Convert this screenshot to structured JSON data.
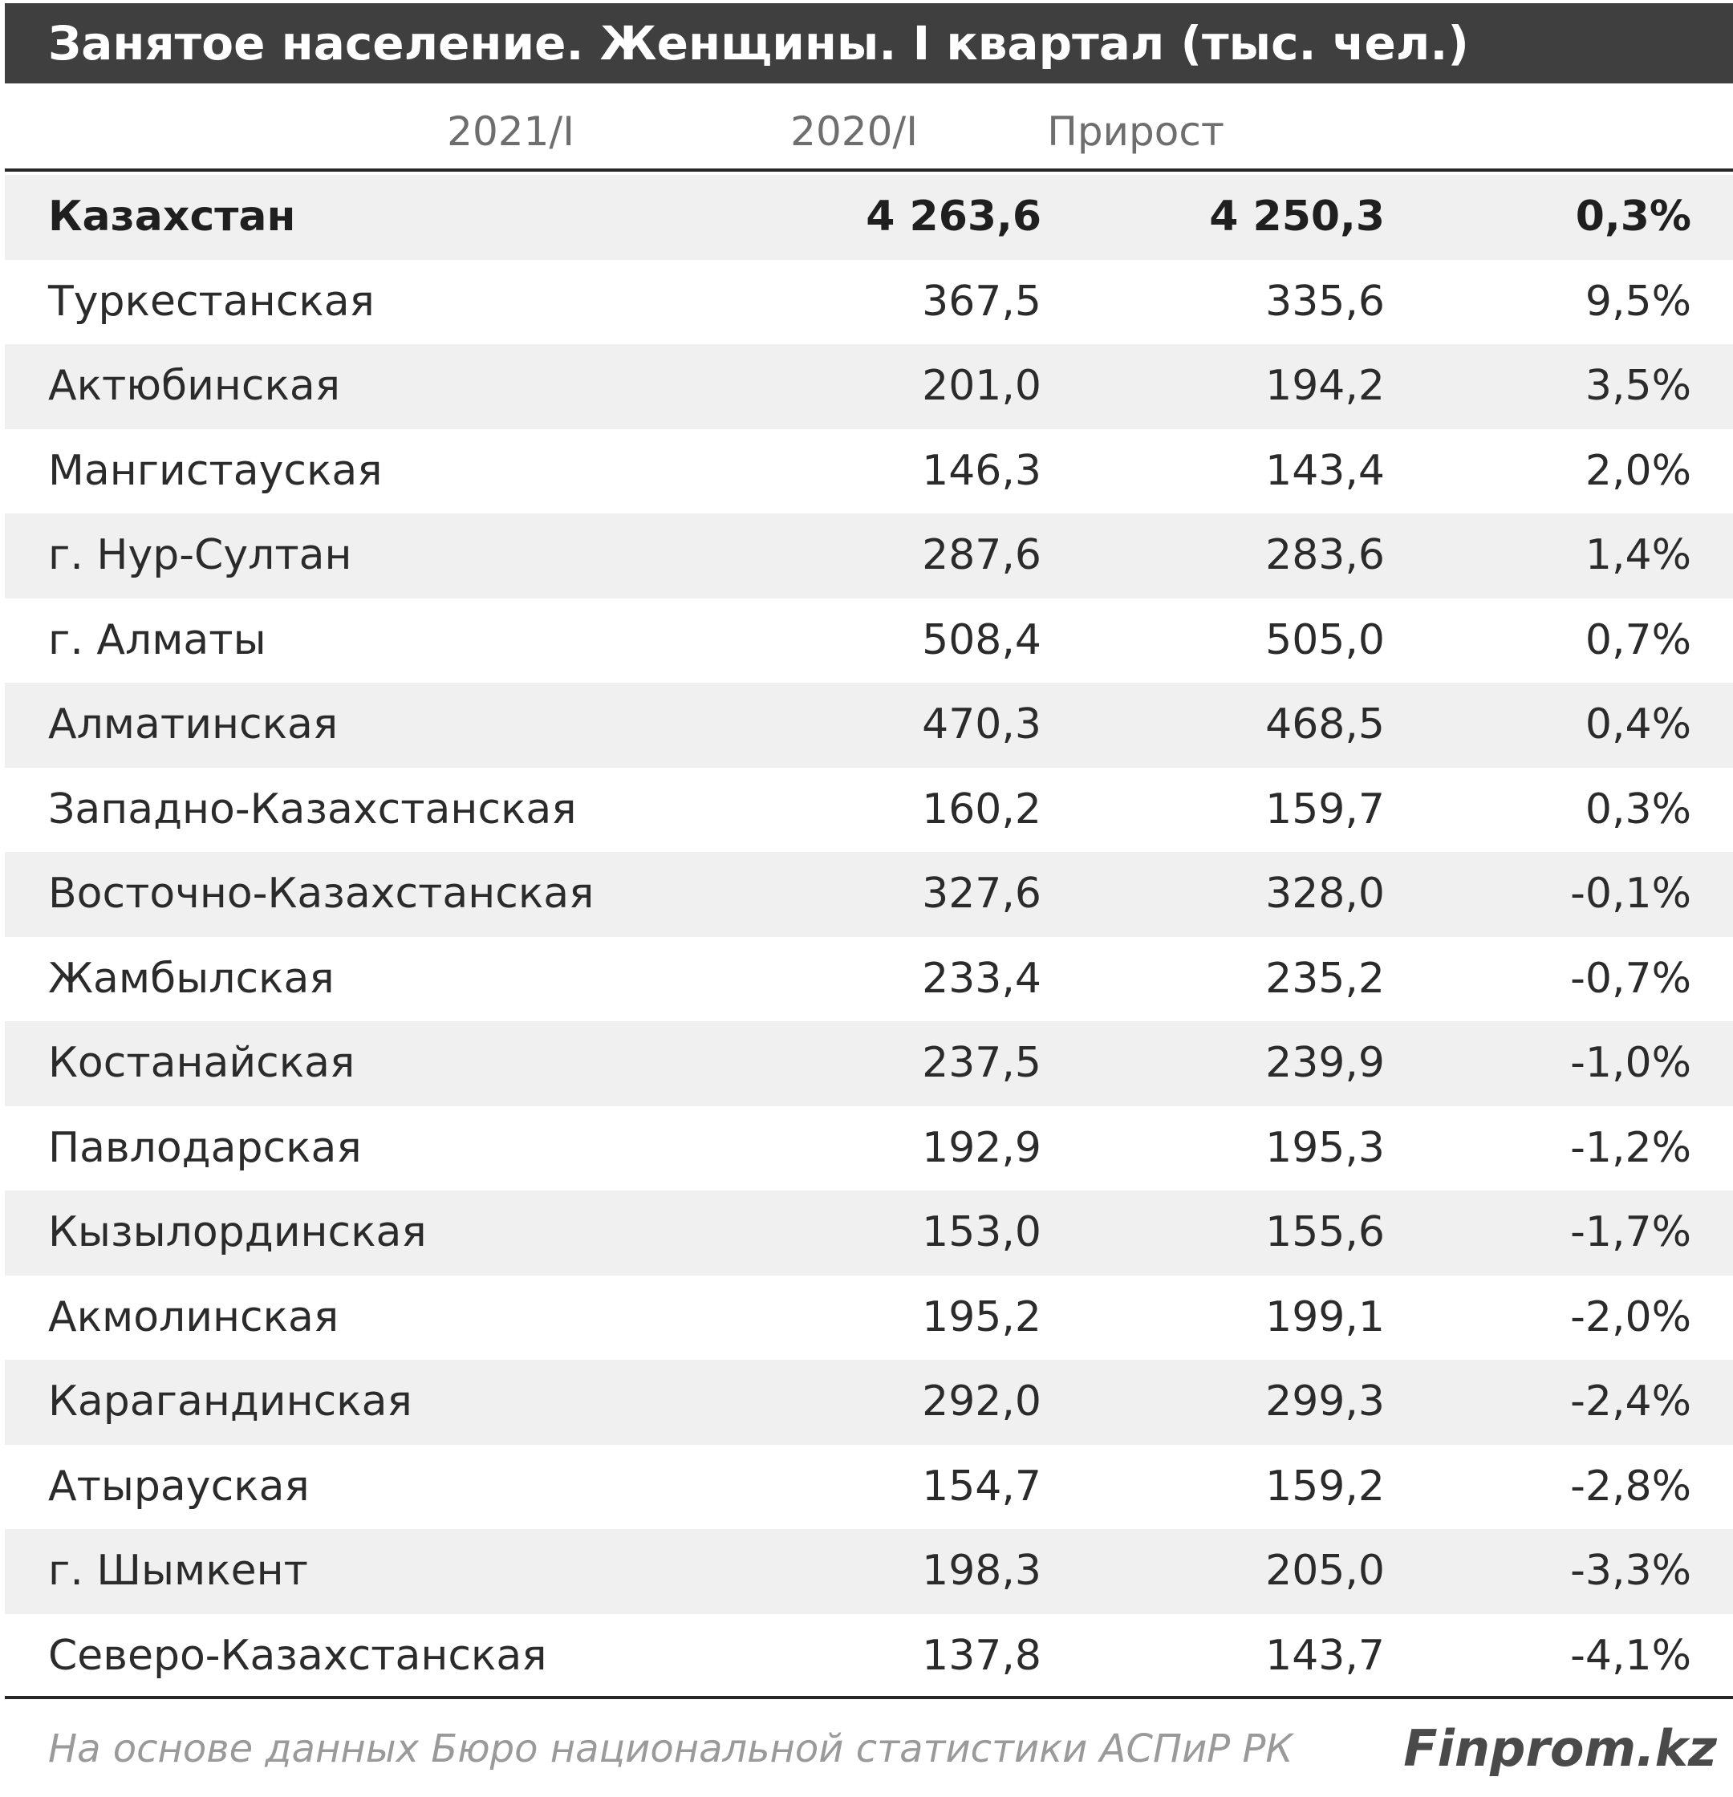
{
  "chart_data": {
    "type": "table",
    "title": "Занятое население. Женщины. I квартал (тыс. чел.)",
    "columns": [
      "2021/I",
      "2020/I",
      "Прирост"
    ],
    "rows": [
      {
        "region": "Казахстан",
        "y2021": "4 263,6",
        "y2020": "4 250,3",
        "growth": "0,3%",
        "total": true
      },
      {
        "region": "Туркестанская",
        "y2021": "367,5",
        "y2020": "335,6",
        "growth": "9,5%"
      },
      {
        "region": "Актюбинская",
        "y2021": "201,0",
        "y2020": "194,2",
        "growth": "3,5%"
      },
      {
        "region": "Мангистауская",
        "y2021": "146,3",
        "y2020": "143,4",
        "growth": "2,0%"
      },
      {
        "region": "г. Нур-Султан",
        "y2021": "287,6",
        "y2020": "283,6",
        "growth": "1,4%"
      },
      {
        "region": "г. Алматы",
        "y2021": "508,4",
        "y2020": "505,0",
        "growth": "0,7%"
      },
      {
        "region": "Алматинская",
        "y2021": "470,3",
        "y2020": "468,5",
        "growth": "0,4%"
      },
      {
        "region": "Западно-Казахстанская",
        "y2021": "160,2",
        "y2020": "159,7",
        "growth": "0,3%"
      },
      {
        "region": "Восточно-Казахстанская",
        "y2021": "327,6",
        "y2020": "328,0",
        "growth": "-0,1%"
      },
      {
        "region": "Жамбылская",
        "y2021": "233,4",
        "y2020": "235,2",
        "growth": "-0,7%"
      },
      {
        "region": "Костанайская",
        "y2021": "237,5",
        "y2020": "239,9",
        "growth": "-1,0%"
      },
      {
        "region": "Павлодарская",
        "y2021": "192,9",
        "y2020": "195,3",
        "growth": "-1,2%"
      },
      {
        "region": "Кызылординская",
        "y2021": "153,0",
        "y2020": "155,6",
        "growth": "-1,7%"
      },
      {
        "region": "Акмолинская",
        "y2021": "195,2",
        "y2020": "199,1",
        "growth": "-2,0%"
      },
      {
        "region": "Карагандинская",
        "y2021": "292,0",
        "y2020": "299,3",
        "growth": "-2,4%"
      },
      {
        "region": "Атырауская",
        "y2021": "154,7",
        "y2020": "159,2",
        "growth": "-2,8%"
      },
      {
        "region": "г. Шымкент",
        "y2021": "198,3",
        "y2020": "205,0",
        "growth": "-3,3%"
      },
      {
        "region": "Северо-Казахстанская",
        "y2021": "137,8",
        "y2020": "143,7",
        "growth": "-4,1%"
      }
    ],
    "source": "На основе данных Бюро национальной статистики АСПиР РК",
    "brand": "Finprom.kz"
  },
  "colors": {
    "title_bg": "#3f3f3f",
    "title_text": "#ffffff",
    "row_alt": "#f0f0f0",
    "header_text": "#6e6e6e",
    "source_text": "#9a9a9a"
  }
}
